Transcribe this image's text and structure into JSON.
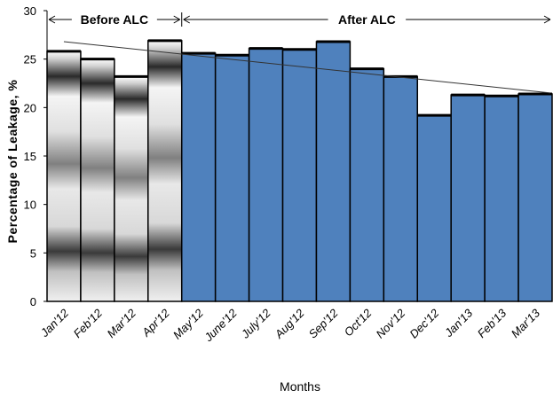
{
  "chart_data": {
    "type": "bar",
    "title": "",
    "xlabel": "Months",
    "ylabel": "Percentage of Leakage, %",
    "ylim": [
      0,
      30
    ],
    "yticks": [
      0,
      5,
      10,
      15,
      20,
      25,
      30
    ],
    "grid": false,
    "categories": [
      "Jan'12",
      "Feb'12",
      "Mar'12",
      "Apr'12",
      "May'12",
      "June'12",
      "July'12",
      "Aug'12",
      "Sep'12",
      "Oct'12",
      "Nov'12",
      "Dec'12",
      "Jan'13",
      "Feb'13",
      "Mar'13"
    ],
    "values": [
      25.8,
      25.0,
      23.2,
      26.9,
      25.6,
      25.4,
      26.1,
      26.0,
      26.8,
      24.0,
      23.2,
      19.2,
      21.3,
      21.2,
      21.4
    ],
    "phases": [
      {
        "label": "Before ALC",
        "count": 4,
        "fill": "gradient-gray"
      },
      {
        "label": "After ALC",
        "count": 11,
        "fill": "#4f81bd"
      }
    ],
    "trendline": {
      "start": 26.8,
      "end": 21.5
    }
  }
}
